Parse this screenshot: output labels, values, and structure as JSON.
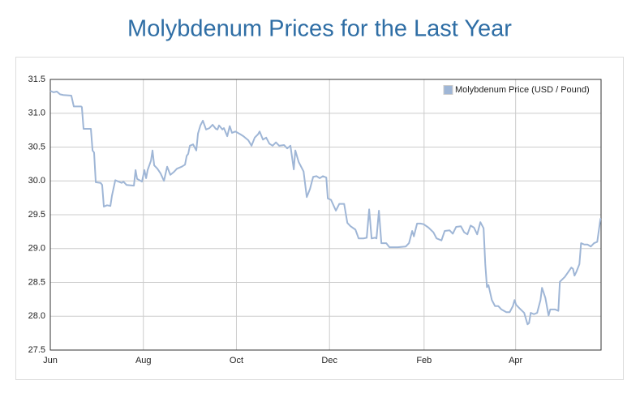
{
  "chart_data": {
    "type": "line",
    "title": "Molybdenum Prices for the Last Year",
    "x": [
      0,
      2.1,
      4.3,
      6.4,
      8.5,
      13.8,
      15.4,
      20.2,
      20.7,
      21.8,
      26.6,
      27.7,
      28.7,
      29.8,
      33.0,
      34.0,
      35.1,
      37.2,
      39.4,
      40.4,
      42.6,
      44.7,
      46.8,
      47.9,
      50.0,
      54.8,
      55.9,
      56.9,
      60.1,
      61.7,
      62.8,
      63.8,
      66.0,
      67.0,
      68.1,
      70.2,
      72.3,
      74.5,
      76.6,
      78.7,
      80.9,
      83.0,
      86.2,
      88.3,
      89.4,
      90.4,
      91.5,
      93.6,
      95.7,
      96.8,
      98.4,
      100.0,
      102.1,
      104.3,
      106.4,
      108.5,
      109.6,
      110.6,
      112.8,
      113.8,
      116.0,
      117.6,
      119.1,
      121.3,
      124.5,
      126.6,
      129.8,
      131.9,
      134.0,
      136.2,
      137.2,
      139.4,
      141.5,
      143.6,
      145.7,
      147.9,
      150.0,
      153.2,
      155.3,
      157.4,
      159.6,
      160.6,
      162.8,
      166.0,
      168.1,
      170.2,
      172.3,
      174.5,
      176.6,
      178.7,
      180.9,
      181.9,
      184.0,
      187.2,
      189.4,
      192.6,
      194.7,
      196.8,
      200.0,
      202.1,
      205.3,
      207.4,
      209.0,
      210.6,
      212.8,
      213.8,
      215.4,
      217.0,
      220.2,
      222.3,
      227.7,
      233.0,
      235.1,
      237.2,
      238.3,
      240.4,
      242.6,
      244.7,
      247.9,
      251.1,
      253.2,
      256.4,
      258.5,
      261.7,
      263.8,
      266.0,
      269.1,
      271.3,
      273.4,
      275.5,
      277.7,
      279.8,
      281.9,
      284.0,
      285.1,
      286.2,
      287.2,
      289.4,
      291.5,
      293.6,
      295.7,
      298.9,
      301.1,
      303.2,
      304.3,
      305.3,
      307.4,
      310.6,
      312.8,
      313.8,
      314.9,
      317.0,
      319.1,
      321.3,
      322.3,
      324.5,
      326.6,
      327.7,
      330.9,
      333.0,
      334.0,
      337.2,
      339.4,
      341.5,
      342.6,
      343.6,
      344.7,
      346.8,
      347.9,
      350.0,
      352.1,
      354.3,
      356.4,
      358.5,
      360.6,
      361
    ],
    "series": [
      {
        "name": "Molybdenum Price (USD / Pound)",
        "color": "#9fb6d6",
        "values": [
          31.33,
          31.31,
          31.32,
          31.28,
          31.27,
          31.26,
          31.1,
          31.1,
          31.09,
          30.77,
          30.77,
          30.45,
          30.42,
          29.98,
          29.97,
          29.94,
          29.62,
          29.64,
          29.63,
          29.78,
          30.01,
          29.99,
          29.97,
          29.99,
          29.94,
          29.93,
          30.16,
          30.03,
          29.99,
          30.16,
          30.04,
          30.16,
          30.3,
          30.45,
          30.23,
          30.18,
          30.11,
          30.0,
          30.21,
          30.09,
          30.13,
          30.18,
          30.21,
          30.24,
          30.37,
          30.4,
          30.52,
          30.54,
          30.45,
          30.7,
          30.82,
          30.89,
          30.76,
          30.78,
          30.83,
          30.77,
          30.76,
          30.82,
          30.76,
          30.78,
          30.66,
          30.81,
          30.71,
          30.73,
          30.69,
          30.66,
          30.6,
          30.52,
          30.64,
          30.69,
          30.73,
          30.61,
          30.64,
          30.55,
          30.52,
          30.57,
          30.52,
          30.53,
          30.48,
          30.52,
          30.17,
          30.45,
          30.28,
          30.14,
          29.76,
          29.88,
          30.06,
          30.07,
          30.04,
          30.07,
          30.05,
          29.74,
          29.72,
          29.56,
          29.66,
          29.66,
          29.38,
          29.33,
          29.28,
          29.15,
          29.15,
          29.16,
          29.58,
          29.15,
          29.16,
          29.15,
          29.56,
          29.08,
          29.08,
          29.02,
          29.02,
          29.03,
          29.08,
          29.26,
          29.18,
          29.37,
          29.37,
          29.36,
          29.31,
          29.24,
          29.15,
          29.12,
          29.26,
          29.27,
          29.22,
          29.32,
          29.33,
          29.24,
          29.21,
          29.34,
          29.31,
          29.21,
          29.39,
          29.3,
          28.77,
          28.43,
          28.46,
          28.24,
          28.15,
          28.15,
          28.1,
          28.06,
          28.06,
          28.15,
          28.24,
          28.17,
          28.12,
          28.05,
          27.88,
          27.9,
          28.05,
          28.03,
          28.05,
          28.24,
          28.42,
          28.27,
          28.01,
          28.1,
          28.1,
          28.08,
          28.51,
          28.58,
          28.65,
          28.72,
          28.7,
          28.6,
          28.65,
          28.77,
          29.08,
          29.06,
          29.06,
          29.03,
          29.08,
          29.1,
          29.44,
          29.44
        ]
      }
    ],
    "xlim": [
      0,
      361
    ],
    "xticks": [
      {
        "value": 0,
        "label": "Jun"
      },
      {
        "value": 61,
        "label": "Aug"
      },
      {
        "value": 122,
        "label": "Oct"
      },
      {
        "value": 183,
        "label": "Dec"
      },
      {
        "value": 245,
        "label": "Feb"
      },
      {
        "value": 305,
        "label": "Apr"
      }
    ],
    "ylim": [
      27.5,
      31.5
    ],
    "yticks": [
      27.5,
      {
        "value": 28,
        "label": "28.0"
      },
      28.5,
      {
        "value": 29,
        "label": "29.0"
      },
      29.5,
      {
        "value": 30,
        "label": "30.0"
      },
      30.5,
      {
        "value": 31,
        "label": "31.0"
      },
      31.5
    ],
    "grid": true,
    "legend": "upper right"
  }
}
